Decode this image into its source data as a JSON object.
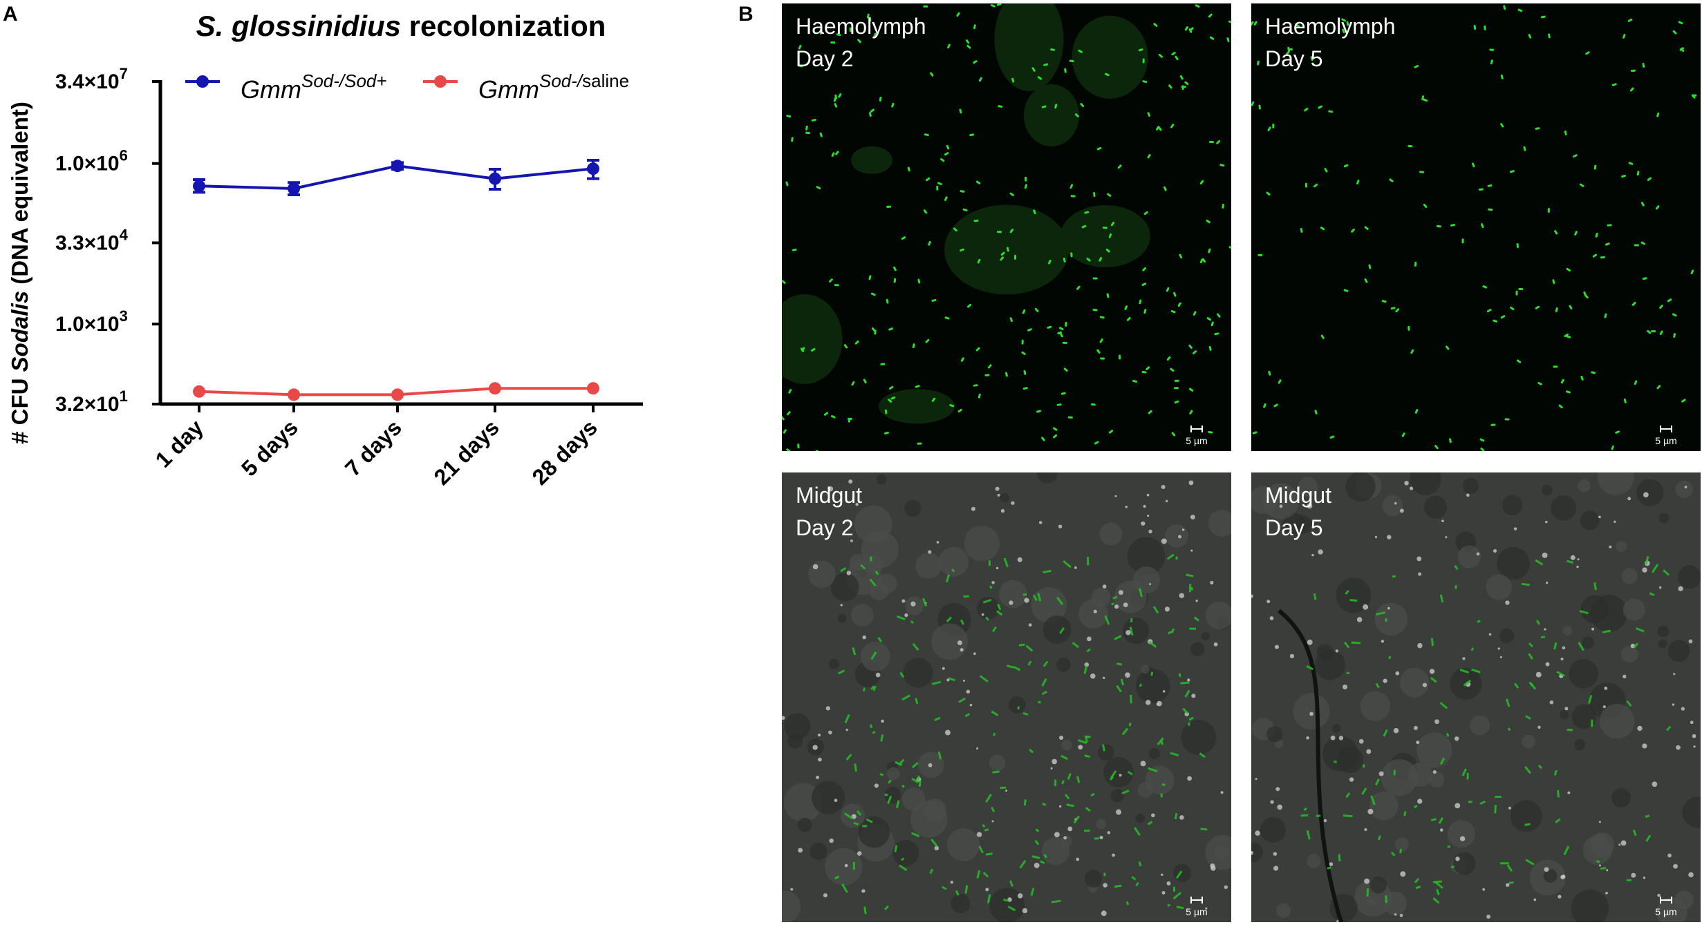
{
  "panel_a": {
    "letter": "A"
  },
  "panel_b": {
    "letter": "B",
    "images": [
      {
        "line1": "Haemolymph",
        "line2": "Day 2",
        "scale": "5 µm",
        "kind": "haemolymph"
      },
      {
        "line1": "Haemolymph",
        "line2": "Day 5",
        "scale": "5 µm",
        "kind": "haemolymph-sparse"
      },
      {
        "line1": "Midgut",
        "line2": "Day 2",
        "scale": "5 µm",
        "kind": "midgut"
      },
      {
        "line1": "Midgut",
        "line2": "Day 5",
        "scale": "5 µm",
        "kind": "midgut"
      }
    ]
  },
  "chart_data": {
    "type": "line",
    "title_italic": "S. glossinidius",
    "title_rest": " recolonization",
    "ylabel_parts": [
      "# CFU ",
      "Sodalis",
      " (DNA equivalent)"
    ],
    "yscale": "log10",
    "ylim": [
      32,
      34000000
    ],
    "yticks": [
      {
        "value": 34000000,
        "mant": "3.4×10",
        "exp": "7"
      },
      {
        "value": 1000000,
        "mant": "1.0×10",
        "exp": "6"
      },
      {
        "value": 33000,
        "mant": "3.3×10",
        "exp": "4"
      },
      {
        "value": 1000,
        "mant": "1.0×10",
        "exp": "3"
      },
      {
        "value": 32,
        "mant": "3.2×10",
        "exp": "1"
      }
    ],
    "categories": [
      "1 day",
      "5 days",
      "7 days",
      "21 days",
      "28 days"
    ],
    "legend_position": "top",
    "series": [
      {
        "name_base": "Gmm",
        "name_sup": "Sod-/Sod+",
        "color": "#1515b0",
        "values": [
          380000,
          340000,
          900000,
          520000,
          800000
        ],
        "err_low": [
          290000,
          260000,
          780000,
          330000,
          520000
        ],
        "err_high": [
          500000,
          440000,
          1040000,
          780000,
          1150000
        ]
      },
      {
        "name_base": "Gmm",
        "name_sup": "Sod-/",
        "name_sup_tail": "saline",
        "color": "#e84848",
        "values": [
          55,
          48,
          48,
          63,
          63
        ]
      }
    ]
  }
}
